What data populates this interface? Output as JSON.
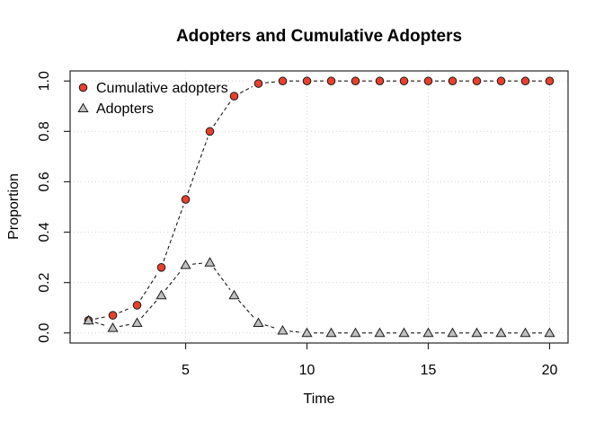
{
  "window": {
    "background_color": "#ffffff"
  },
  "chart_data": {
    "type": "line",
    "title": "Adopters and Cumulative Adopters",
    "xlabel": "Time",
    "ylabel": "Proportion",
    "x": [
      1,
      2,
      3,
      4,
      5,
      6,
      7,
      8,
      9,
      10,
      11,
      12,
      13,
      14,
      15,
      16,
      17,
      18,
      19,
      20
    ],
    "x_ticks": [
      5,
      10,
      15,
      20
    ],
    "x_tick_labels": [
      "5",
      "10",
      "15",
      "20"
    ],
    "y_ticks": [
      0,
      0.2,
      0.4,
      0.6,
      0.8,
      1
    ],
    "y_tick_labels": [
      "0.0",
      "0.2",
      "0.4",
      "0.6",
      "0.8",
      "1.0"
    ],
    "xlim": [
      0.24,
      20.76
    ],
    "ylim": [
      -0.04,
      1.04
    ],
    "grid": "dotted-both-axes",
    "legend_position": "top-left",
    "legend_border": false,
    "line_style": "dashed",
    "series": [
      {
        "name": "Cumulative adopters",
        "marker": "circle",
        "color": "#e8402c",
        "values": [
          0.05,
          0.07,
          0.11,
          0.26,
          0.53,
          0.8,
          0.94,
          0.99,
          1.0,
          1.0,
          1.0,
          1.0,
          1.0,
          1.0,
          1.0,
          1.0,
          1.0,
          1.0,
          1.0,
          1.0
        ]
      },
      {
        "name": "Adopters",
        "marker": "triangle",
        "color": "#c0c0c0",
        "values": [
          0.05,
          0.02,
          0.04,
          0.15,
          0.27,
          0.28,
          0.15,
          0.04,
          0.01,
          0.0,
          0.0,
          0.0,
          0.0,
          0.0,
          0.0,
          0.0,
          0.0,
          0.0,
          0.0,
          0.0
        ]
      }
    ],
    "colors": {
      "line": "#1a1a1a",
      "grid": "#d6d6d6",
      "axis": "#262626",
      "text": "#000000"
    }
  }
}
